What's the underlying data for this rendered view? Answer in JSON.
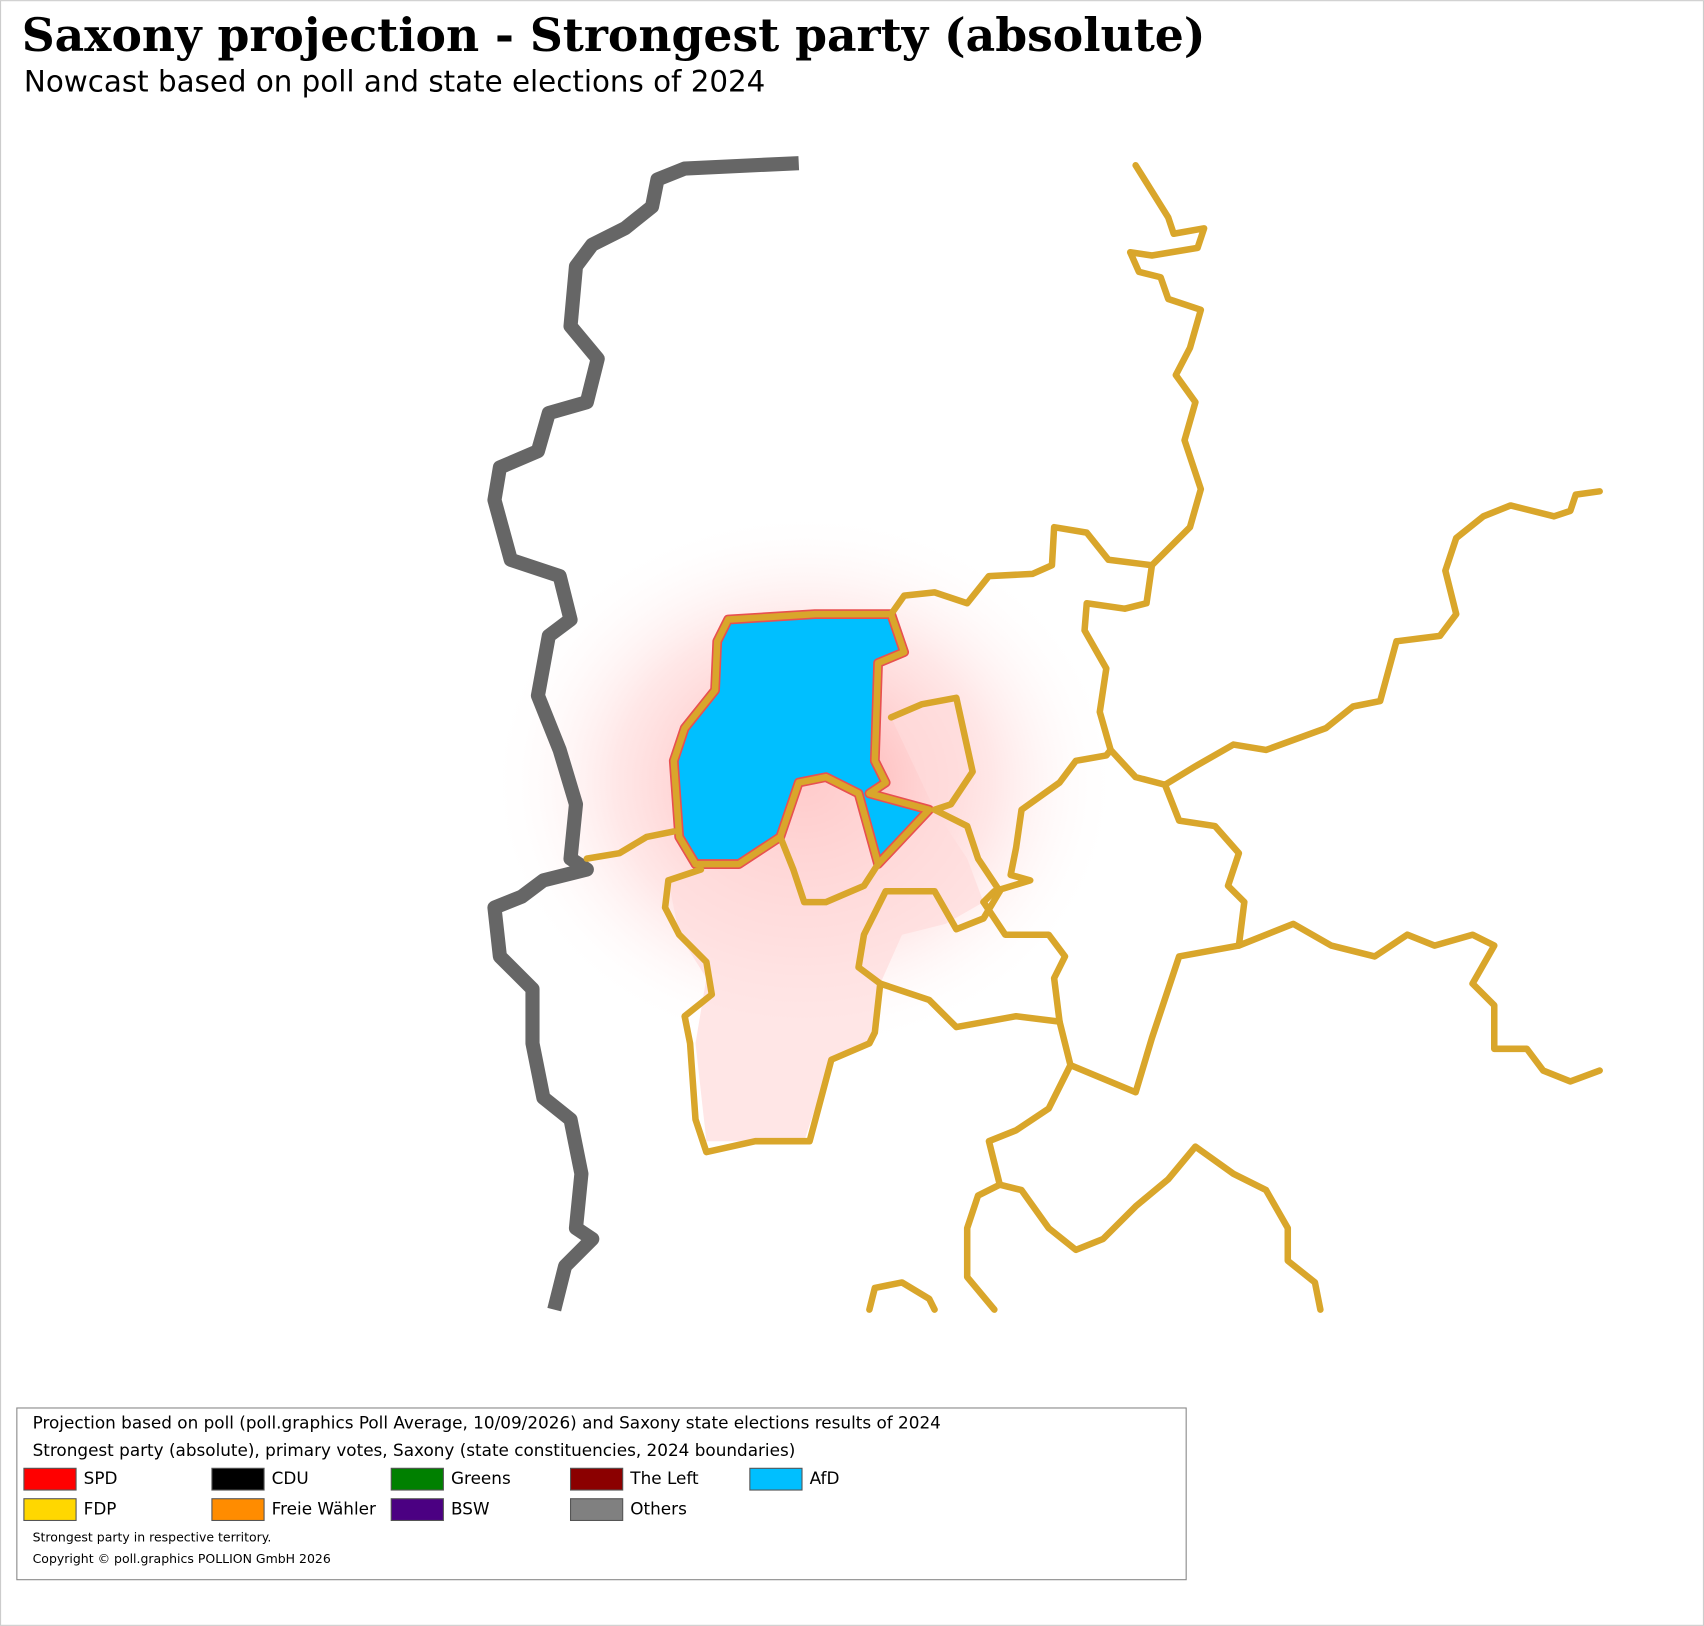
{
  "header": {
    "title": "Saxony projection - Strongest party (absolute)",
    "subtitle": "Nowcast based on poll and state elections of 2024"
  },
  "legend": {
    "lines": [
      "Projection based on poll (poll.graphics Poll Average, 10/09/2026) and Saxony state elections results of 2024",
      "Strongest party (absolute), primary votes, Saxony (state constituencies, 2024 boundaries)"
    ],
    "entries": [
      {
        "name": "SPD",
        "color": "#ff0000"
      },
      {
        "name": "CDU",
        "color": "#000000"
      },
      {
        "name": "Greens",
        "color": "#008000"
      },
      {
        "name": "The Left",
        "color": "#8b0000"
      },
      {
        "name": "AfD",
        "color": "#00bfff"
      },
      {
        "name": "FDP",
        "color": "#ffd700"
      },
      {
        "name": "Freie Wähler",
        "color": "#ff8c00"
      },
      {
        "name": "BSW",
        "color": "#4b0082"
      },
      {
        "name": "Others",
        "color": "#808080"
      }
    ],
    "notes": [
      "Strongest party in respective territory.",
      "Copyright © poll.graphics POLLION GmbH 2026"
    ]
  }
}
